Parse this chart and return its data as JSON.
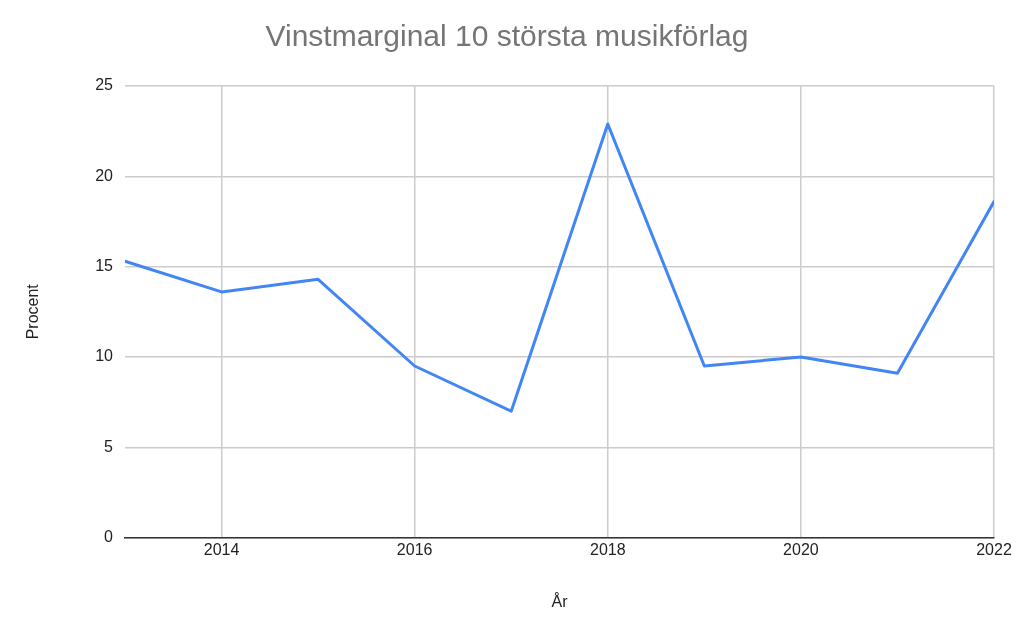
{
  "chart_data": {
    "type": "line",
    "title": "Vinstmarginal 10 största musikförlag",
    "xlabel": "År",
    "ylabel": "Procent",
    "x": [
      2013,
      2014,
      2015,
      2016,
      2017,
      2018,
      2019,
      2020,
      2021,
      2022
    ],
    "series": [
      {
        "color": "#4285f4",
        "values": [
          15.3,
          13.6,
          14.3,
          9.5,
          7.0,
          22.9,
          9.5,
          10.0,
          9.1,
          18.6
        ]
      }
    ],
    "xlim": [
      2013,
      2022
    ],
    "xticks": [
      2014,
      2016,
      2018,
      2020,
      2022
    ],
    "ylim": [
      0,
      25
    ],
    "yticks": [
      0,
      5,
      10,
      15,
      20,
      25
    ],
    "grid": true,
    "marker": "none",
    "line_style": "solid"
  }
}
